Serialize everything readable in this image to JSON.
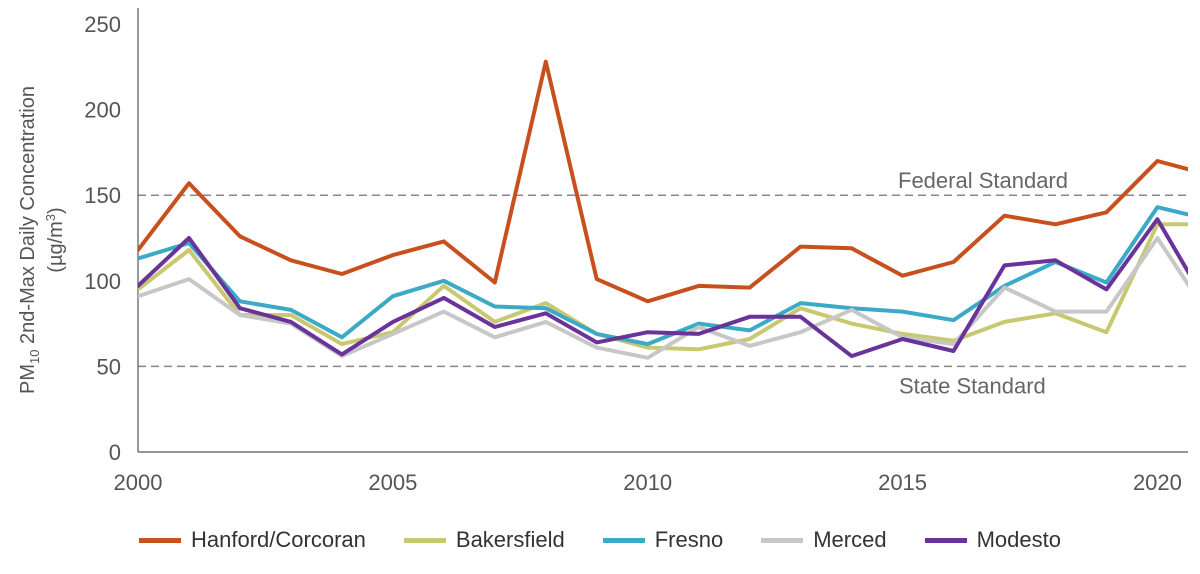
{
  "chart_data": {
    "type": "line",
    "ylabel": "PM10 2nd-Max Daily Concentration (µg/m³)",
    "ylabel_parts": {
      "pm": "PM",
      "sub": "10",
      "rest": " 2nd-Max Daily Concentration",
      "unit_open": "(µg/m",
      "sup": "3",
      "unit_close": ")"
    },
    "xlabel": "",
    "xlim": [
      2000,
      2020.6
    ],
    "ylim": [
      0,
      250
    ],
    "x_ticks": [
      2000,
      2005,
      2010,
      2015,
      2020
    ],
    "y_ticks": [
      0,
      50,
      100,
      150,
      200,
      250
    ],
    "x": [
      2000,
      2001,
      2002,
      2003,
      2004,
      2005,
      2006,
      2007,
      2008,
      2009,
      2010,
      2011,
      2012,
      2013,
      2014,
      2015,
      2016,
      2017,
      2018,
      2019,
      2020,
      2021
    ],
    "reference_lines": [
      {
        "label": "Federal Standard",
        "value": 150
      },
      {
        "label": "State Standard",
        "value": 50
      }
    ],
    "series": [
      {
        "name": "Hanford/Corcoran",
        "color": "#c8501e",
        "values": [
          118,
          157,
          126,
          112,
          104,
          115,
          123,
          99,
          228,
          101,
          88,
          97,
          96,
          120,
          119,
          103,
          111,
          138,
          133,
          140,
          170,
          162
        ]
      },
      {
        "name": "Bakersfield",
        "color": "#c8c870",
        "values": [
          95,
          118,
          80,
          80,
          63,
          70,
          97,
          76,
          87,
          69,
          61,
          60,
          66,
          84,
          75,
          69,
          65,
          76,
          81,
          70,
          133,
          133
        ]
      },
      {
        "name": "Fresno",
        "color": "#3ca9c6",
        "values": [
          113,
          122,
          88,
          83,
          67,
          91,
          100,
          85,
          84,
          69,
          63,
          75,
          71,
          87,
          84,
          82,
          77,
          97,
          111,
          99,
          143,
          136
        ]
      },
      {
        "name": "Merced",
        "color": "#c7c7c7",
        "values": [
          91,
          101,
          80,
          75,
          56,
          69,
          82,
          67,
          76,
          61,
          55,
          73,
          62,
          70,
          83,
          67,
          63,
          96,
          82,
          82,
          125,
          80
        ]
      },
      {
        "name": "Modesto",
        "color": "#69339a",
        "values": [
          97,
          125,
          84,
          76,
          57,
          76,
          90,
          73,
          81,
          64,
          70,
          69,
          79,
          79,
          56,
          66,
          59,
          109,
          112,
          95,
          136,
          85
        ]
      }
    ]
  }
}
